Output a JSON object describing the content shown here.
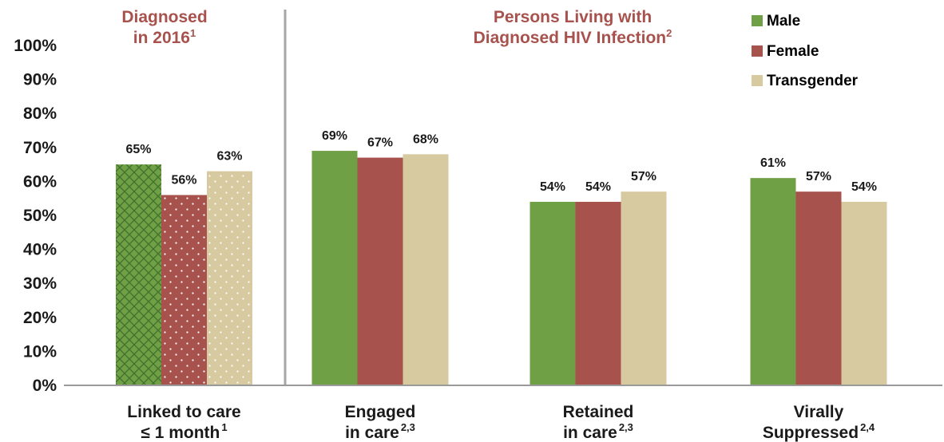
{
  "colors": {
    "male": "#70A046",
    "female": "#A8524E",
    "transgender": "#D7C9A0",
    "header": "#A8524E",
    "divider": "#A6A6A6",
    "text": "#1A1A1A"
  },
  "headers": {
    "left_line1": "Diagnosed",
    "left_line2": "in 2016",
    "left_sup": "1",
    "right_line1": "Persons Living with",
    "right_line2": "Diagnosed HIV Infection",
    "right_sup": "2"
  },
  "chart_data": {
    "type": "bar",
    "ylim": [
      0,
      100
    ],
    "y_ticks": [
      "0%",
      "10%",
      "20%",
      "30%",
      "40%",
      "50%",
      "60%",
      "70%",
      "80%",
      "90%",
      "100%"
    ],
    "legend_position": "top-right",
    "categories": [
      {
        "line1": "Linked to care",
        "line2": "≤ 1 month",
        "line2_sup": "1",
        "patterned": true
      },
      {
        "line1": "Engaged",
        "line2": "in care",
        "line2_sup": "2,3",
        "patterned": false
      },
      {
        "line1": "Retained",
        "line2": "in care",
        "line2_sup": "2,3",
        "patterned": false
      },
      {
        "line1": "Virally",
        "line2": "Suppressed",
        "line2_sup": "2,4",
        "patterned": false
      }
    ],
    "series": [
      {
        "name": "Male",
        "values": [
          65,
          69,
          54,
          61
        ],
        "labels": [
          "65%",
          "69%",
          "54%",
          "61%"
        ]
      },
      {
        "name": "Female",
        "values": [
          56,
          67,
          54,
          57
        ],
        "labels": [
          "56%",
          "67%",
          "54%",
          "57%"
        ]
      },
      {
        "name": "Transgender",
        "values": [
          63,
          68,
          57,
          54
        ],
        "labels": [
          "63%",
          "68%",
          "57%",
          "54%"
        ]
      }
    ]
  }
}
